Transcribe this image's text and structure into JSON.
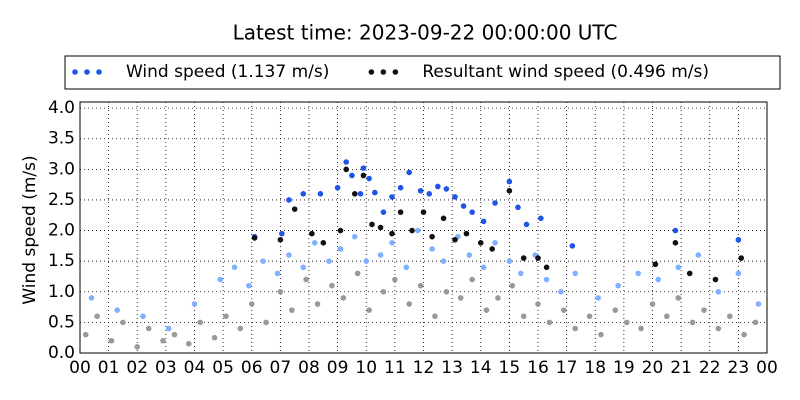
{
  "chart_data": {
    "type": "scatter",
    "title": "Latest time: 2023-09-22 00:00:00 UTC",
    "y_label": "Wind speed (m/s)",
    "xlim": [
      0,
      24
    ],
    "ylim": [
      0,
      4.1
    ],
    "xticks": [
      {
        "value": 0,
        "label": "00"
      },
      {
        "value": 1,
        "label": "01"
      },
      {
        "value": 2,
        "label": "02"
      },
      {
        "value": 3,
        "label": "03"
      },
      {
        "value": 4,
        "label": "04"
      },
      {
        "value": 5,
        "label": "05"
      },
      {
        "value": 6,
        "label": "06"
      },
      {
        "value": 7,
        "label": "07"
      },
      {
        "value": 8,
        "label": "08"
      },
      {
        "value": 9,
        "label": "09"
      },
      10,
      11,
      12,
      13,
      14,
      15,
      16,
      17,
      18,
      19,
      20,
      21,
      22,
      23,
      {
        "value": 24,
        "label": "00"
      }
    ],
    "yticks": [
      {
        "value": 0,
        "label": "0.0"
      },
      0.5,
      {
        "value": 1,
        "label": "1.0"
      },
      1.5,
      {
        "value": 2,
        "label": "2.0"
      },
      2.5,
      {
        "value": 3,
        "label": "3.0"
      },
      3.5,
      {
        "value": 4,
        "label": "4.0"
      }
    ],
    "grid": true,
    "series": [
      {
        "color": "#999999",
        "x": [
          0.2,
          0.6,
          1.1,
          1.5,
          2.0,
          2.4,
          2.9,
          3.3,
          3.8,
          4.2,
          4.7,
          5.1,
          5.6,
          6.0,
          6.5,
          7.0,
          7.4,
          7.9,
          8.3,
          8.8,
          9.2,
          9.7,
          10.1,
          10.6,
          11.0,
          11.5,
          11.9,
          12.4,
          12.8,
          13.3,
          13.7,
          14.2,
          14.6,
          15.1,
          15.5,
          16.0,
          16.4,
          16.9,
          17.3,
          17.8,
          18.2,
          18.7,
          19.1,
          19.6,
          20.0,
          20.5,
          20.9,
          21.4,
          21.8,
          22.3,
          22.7,
          23.2,
          23.6
        ],
        "values": [
          0.3,
          0.6,
          0.2,
          0.5,
          0.1,
          0.4,
          0.2,
          0.3,
          0.15,
          0.5,
          0.25,
          0.6,
          0.4,
          0.8,
          0.5,
          1.0,
          0.7,
          1.2,
          0.8,
          1.1,
          0.9,
          1.3,
          0.7,
          1.0,
          1.2,
          0.8,
          1.1,
          0.6,
          1.0,
          0.9,
          1.2,
          0.7,
          0.9,
          1.1,
          0.6,
          0.8,
          0.5,
          0.7,
          0.4,
          0.6,
          0.3,
          0.7,
          0.5,
          0.4,
          0.8,
          0.6,
          0.9,
          0.5,
          0.7,
          0.4,
          0.6,
          0.3,
          0.5
        ]
      },
      {
        "color": "#80b0ff",
        "x": [
          0.4,
          1.3,
          2.2,
          3.1,
          4.0,
          4.9,
          5.4,
          5.9,
          6.4,
          6.9,
          7.3,
          7.8,
          8.2,
          8.7,
          9.1,
          9.6,
          10.0,
          10.5,
          10.9,
          11.4,
          11.8,
          12.3,
          12.7,
          13.2,
          13.6,
          14.1,
          14.5,
          15.0,
          15.4,
          15.9,
          16.3,
          16.8,
          17.3,
          18.1,
          18.8,
          19.5,
          20.2,
          20.9,
          21.6,
          22.3,
          23.0,
          23.7
        ],
        "values": [
          0.9,
          0.7,
          0.6,
          0.4,
          0.8,
          1.2,
          1.4,
          1.1,
          1.5,
          1.3,
          1.6,
          1.4,
          1.8,
          1.5,
          1.7,
          1.9,
          1.5,
          1.6,
          1.8,
          1.4,
          2.0,
          1.7,
          1.5,
          1.9,
          1.6,
          1.4,
          1.8,
          1.5,
          1.3,
          1.6,
          1.2,
          1.0,
          1.3,
          0.9,
          1.1,
          1.3,
          1.2,
          1.4,
          1.6,
          1.0,
          1.3,
          0.8
        ]
      },
      {
        "name": "Wind speed (1.137 m/s)",
        "color": "#1f55e6",
        "x": [
          6.1,
          7.05,
          7.3,
          7.8,
          8.4,
          9.0,
          9.3,
          9.5,
          9.8,
          9.9,
          10.1,
          10.3,
          10.6,
          10.9,
          11.2,
          11.5,
          11.9,
          12.2,
          12.5,
          12.8,
          13.1,
          13.4,
          13.7,
          14.1,
          14.5,
          15.0,
          15.3,
          15.6,
          16.1,
          17.2,
          20.8,
          23.0
        ],
        "values": [
          1.9,
          1.95,
          2.5,
          2.6,
          2.6,
          2.7,
          3.12,
          2.9,
          2.6,
          3.02,
          2.85,
          2.62,
          2.3,
          2.55,
          2.7,
          2.95,
          2.65,
          2.6,
          2.72,
          2.68,
          2.55,
          2.4,
          2.3,
          2.15,
          2.45,
          2.8,
          2.38,
          2.1,
          2.2,
          1.75,
          2.0,
          1.85
        ]
      },
      {
        "name": "Resultant wind speed (0.496 m/s)",
        "color": "#111111",
        "x": [
          6.1,
          7.0,
          7.5,
          8.1,
          8.5,
          9.1,
          9.3,
          9.6,
          9.9,
          10.2,
          10.5,
          10.9,
          11.2,
          11.6,
          12.0,
          12.3,
          12.7,
          13.1,
          13.5,
          14.0,
          14.4,
          15.0,
          15.5,
          16.0,
          16.3,
          20.1,
          20.8,
          21.3,
          22.2,
          23.1
        ],
        "values": [
          1.88,
          1.85,
          2.35,
          1.95,
          1.8,
          2.0,
          3.0,
          2.6,
          2.9,
          2.1,
          2.05,
          1.95,
          2.3,
          2.0,
          2.3,
          1.9,
          2.2,
          1.85,
          1.95,
          1.8,
          1.7,
          2.65,
          1.55,
          1.55,
          1.4,
          1.45,
          1.8,
          1.3,
          1.2,
          1.55
        ]
      }
    ]
  }
}
